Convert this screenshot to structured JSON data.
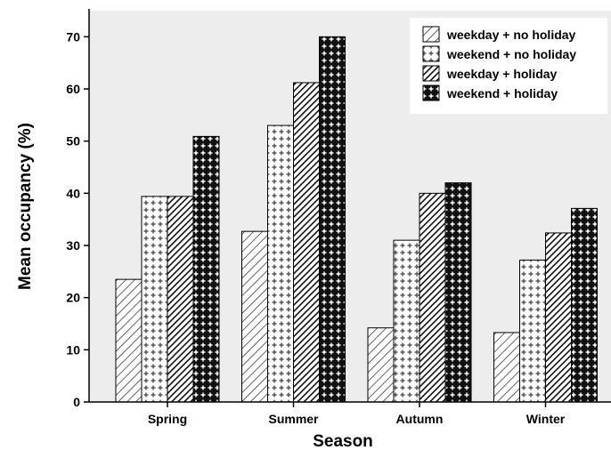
{
  "chart_data": {
    "type": "bar",
    "title": "",
    "xlabel": "Season",
    "ylabel": "Mean occupancy (%)",
    "ylim": [
      0,
      75
    ],
    "yticks": [
      0,
      10,
      20,
      30,
      40,
      50,
      60,
      70
    ],
    "categories": [
      "Spring",
      "Summer",
      "Autumn",
      "Winter"
    ],
    "legend_position": "top-right",
    "grid": false,
    "background_color": "#ededed",
    "series": [
      {
        "name": "weekday + no holiday",
        "pattern": "sparse-diagonal",
        "values": [
          23.5,
          32.7,
          14.2,
          13.3
        ]
      },
      {
        "name": "weekend + no holiday",
        "pattern": "white-cross",
        "values": [
          39.4,
          53.0,
          31.0,
          27.2
        ]
      },
      {
        "name": "weekday + holiday",
        "pattern": "dense-diagonal",
        "values": [
          39.4,
          61.2,
          40.0,
          32.4
        ]
      },
      {
        "name": "weekend + holiday",
        "pattern": "black-cross",
        "values": [
          50.9,
          70.0,
          42.0,
          37.1
        ]
      }
    ]
  }
}
